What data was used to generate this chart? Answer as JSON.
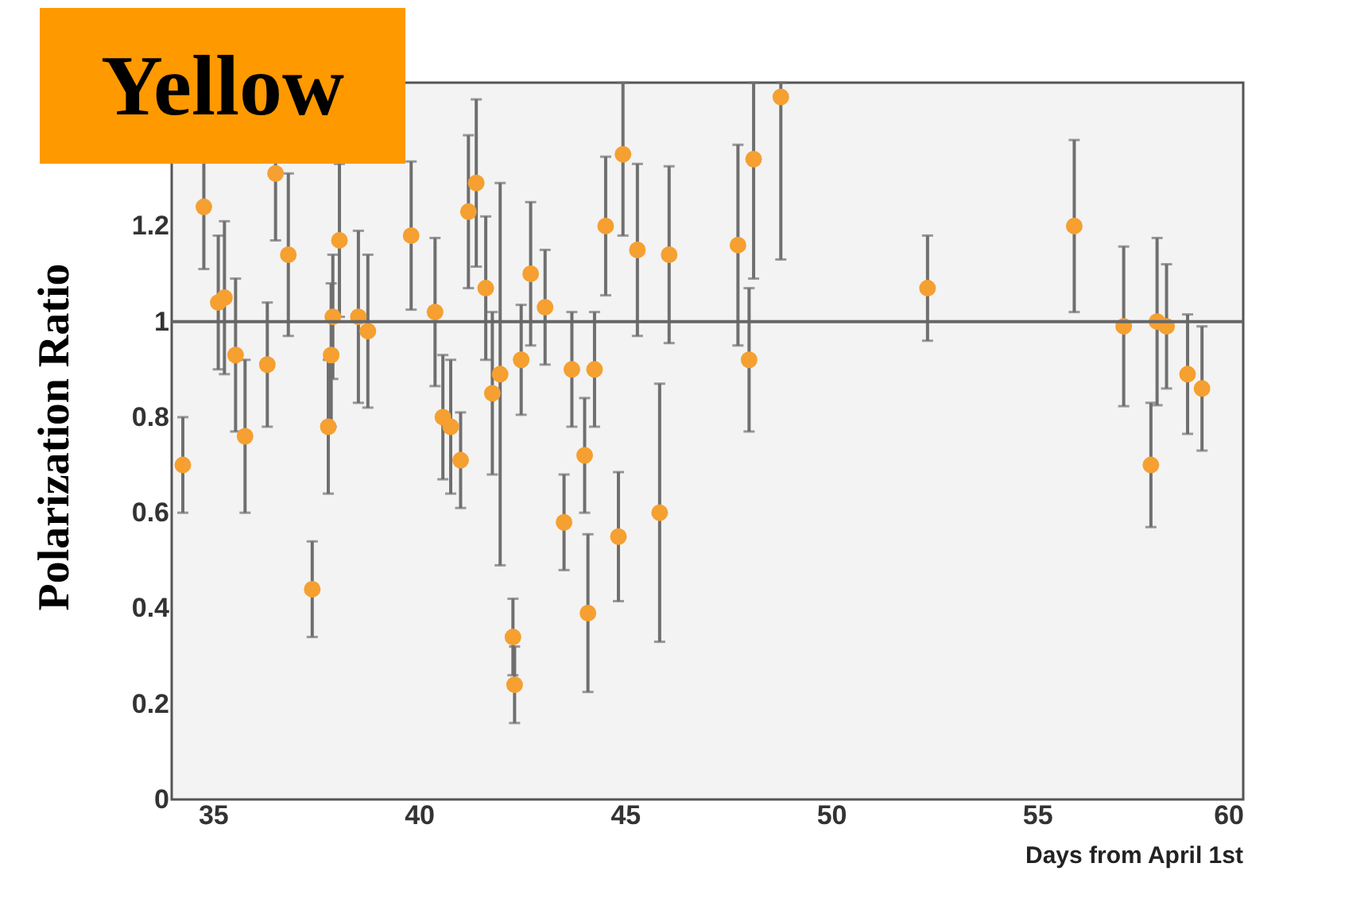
{
  "chart_data": {
    "type": "scatter",
    "title": "Yellow",
    "xlabel": "Days from April 1st",
    "ylabel": "Polarization Ratio",
    "xlim": [
      34,
      60
    ],
    "xticks": [
      35,
      40,
      45,
      50,
      55,
      60
    ],
    "ylim": [
      0,
      1.5
    ],
    "yticks": [
      0,
      0.2,
      0.4,
      0.6,
      0.8,
      1,
      1.2
    ],
    "grid": false,
    "ref_lines": [
      {
        "axis": "y",
        "value": 1,
        "color": "#666666"
      }
    ],
    "series": [
      {
        "color": "#f5a030",
        "x": [
          34.27,
          34.78,
          35.13,
          35.28,
          35.55,
          35.78,
          36.32,
          36.52,
          36.83,
          37.41,
          37.8,
          37.87,
          37.91,
          38.07,
          38.53,
          38.76,
          39.81,
          40.39,
          40.58,
          40.77,
          41.01,
          41.2,
          41.39,
          41.62,
          41.78,
          41.97,
          42.48,
          42.71,
          43.06,
          43.71,
          44.26,
          44.53,
          44.95,
          45.3,
          46.07,
          44.02,
          42.28,
          42.32,
          43.52,
          44.1,
          44.84,
          45.84,
          47.74,
          48.01,
          48.12,
          48.78,
          52.34,
          55.9,
          57.1,
          57.76,
          57.91,
          58.14,
          58.65,
          59.0
        ],
        "values": [
          0.7,
          1.24,
          1.04,
          1.05,
          0.93,
          0.76,
          0.91,
          1.31,
          1.14,
          0.44,
          0.78,
          0.93,
          1.01,
          1.17,
          1.01,
          0.98,
          1.18,
          1.02,
          0.8,
          0.78,
          0.71,
          1.23,
          1.29,
          1.07,
          0.85,
          0.89,
          0.92,
          1.1,
          1.03,
          0.9,
          0.9,
          1.2,
          1.35,
          1.15,
          1.14,
          0.72,
          0.34,
          0.24,
          0.58,
          0.39,
          0.55,
          0.6,
          1.16,
          0.92,
          1.34,
          1.47,
          1.07,
          1.2,
          0.99,
          0.7,
          1.0,
          0.99,
          0.89,
          0.86
        ],
        "errors": [
          0.1,
          0.13,
          0.14,
          0.16,
          0.16,
          0.16,
          0.13,
          0.14,
          0.17,
          0.1,
          0.14,
          0.15,
          0.13,
          0.16,
          0.18,
          0.16,
          0.155,
          0.155,
          0.13,
          0.14,
          0.1,
          0.16,
          0.175,
          0.15,
          0.17,
          0.4,
          0.115,
          0.15,
          0.12,
          0.12,
          0.12,
          0.145,
          [
            1.18,
            1.5
          ],
          0.18,
          0.185,
          0.12,
          0.08,
          0.08,
          0.1,
          0.165,
          0.135,
          0.27,
          0.21,
          0.15,
          [
            1.09,
            1.5
          ],
          [
            1.13,
            1.5
          ],
          0.11,
          0.18,
          0.167,
          0.13,
          0.175,
          0.13,
          0.125,
          0.13
        ]
      }
    ]
  }
}
